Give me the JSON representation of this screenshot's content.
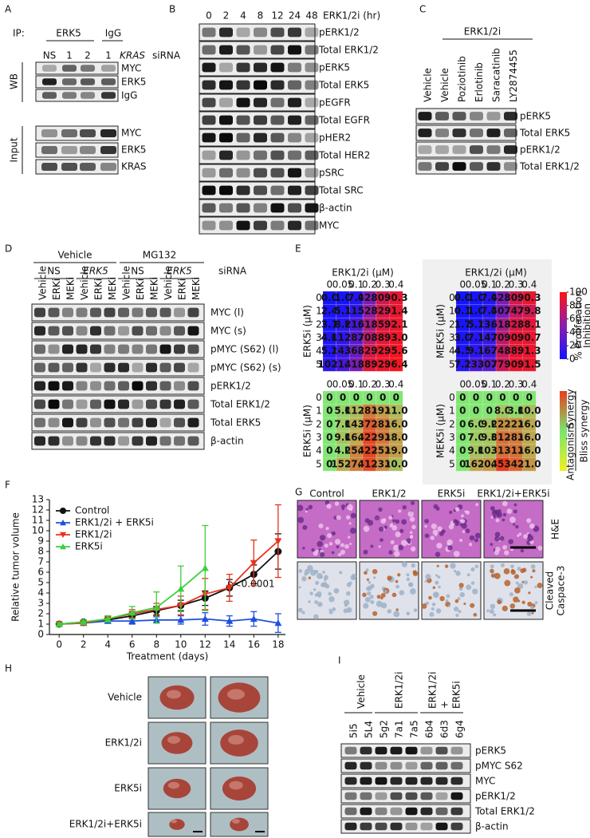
{
  "panel_labels": [
    "A",
    "B",
    "C",
    "D",
    "E",
    "F",
    "G",
    "H",
    "I"
  ],
  "A": {
    "ip_label": "IP:",
    "ip_groups": [
      "ERK5",
      "IgG"
    ],
    "lanes": [
      "NS",
      "1",
      "2",
      "1"
    ],
    "lane_gene": "KRAS",
    "lane_suffix": "siRNA",
    "sections": [
      "WB",
      "Input"
    ],
    "wb_rows": [
      "MYC",
      "ERK5",
      "IgG"
    ],
    "input_rows": [
      "MYC",
      "ERK5",
      "KRAS"
    ]
  },
  "B": {
    "lanes": [
      "0",
      "2",
      "4",
      "8",
      "12",
      "24",
      "48"
    ],
    "lanes_label": "ERK1/2i (hr)",
    "rows": [
      "pERK1/2",
      "Total ERK1/2",
      "pERK5",
      "Total ERK5",
      "pEGFR",
      "Total EGFR",
      "pHER2",
      "Total HER2",
      "pSRC",
      "Total SRC",
      "β-actin",
      "MYC"
    ]
  },
  "C": {
    "group": "ERK1/2i",
    "lanes": [
      "Vehicle",
      "Vehicle",
      "Poziotinib",
      "Erlotinib",
      "Saracatinib",
      "LY2874455"
    ],
    "rows": [
      "pERK5",
      "Total ERK5",
      "pERK1/2",
      "Total ERK1/2"
    ]
  },
  "D": {
    "treatments": [
      "Vehicle",
      "MG132"
    ],
    "sirna": [
      "NS",
      "ERK5",
      "NS",
      "ERK5"
    ],
    "sirna_label": "siRNA",
    "lanes": [
      "Vehicle",
      "ERKi",
      "MEKi",
      "Vehicle",
      "ERKi",
      "MEKi",
      "Vehicle",
      "ERKi",
      "MEKi",
      "Vehicle",
      "ERKi",
      "MEKi"
    ],
    "rows": [
      "MYC (l)",
      "MYC (s)",
      "pMYC (S62) (l)",
      "pMYC (S62) (s)",
      "pERK1/2",
      "Total ERK1/2",
      "Total ERK5",
      "β-actin"
    ]
  },
  "E": {
    "inhibition": [
      {
        "title": "ERK1/2i (μM)",
        "ylabel": "ERK5i (μM)",
        "cols": [
          "0",
          "0.05",
          "0.1",
          "0.2",
          "0.3",
          "0.4"
        ],
        "rows": [
          "0",
          "1",
          "2",
          "3",
          "4",
          "5"
        ],
        "cells": [
          [
            "0.0",
            "1.0",
            "7.0",
            "42.8",
            "80.0",
            "90.3"
          ],
          [
            "2.4",
            "5.1",
            "11.2",
            "52.6",
            "82.4",
            "91.4"
          ],
          [
            "3.1",
            "8.6",
            "21.0",
            "61.5",
            "85.5",
            "92.1"
          ],
          [
            "4.0",
            "11.2",
            "28.0",
            "70.2",
            "88.7",
            "93.0"
          ],
          [
            "5.2",
            "14.7",
            "36.2",
            "82.5",
            "92.2",
            "95.6"
          ],
          [
            "10.0",
            "21.4",
            "41.9",
            "88.4",
            "92.2",
            "96.4"
          ]
        ]
      },
      {
        "title": "ERK1/2i (μM)",
        "ylabel": "MEK5i (μM)",
        "cols": [
          "0",
          "0.05",
          "0.1",
          "0.2",
          "0.3",
          "0.4"
        ],
        "rows": [
          "0",
          "1",
          "2",
          "3",
          "4",
          "5"
        ],
        "cells": [
          [
            "0.0",
            "1.0",
            "7.0",
            "42.8",
            "80.0",
            "90.3"
          ],
          [
            "0.1",
            "1.0",
            "7.5",
            "40.6",
            "74.4",
            "79.8"
          ],
          [
            "1.7",
            "5.7",
            "13.5",
            "61.4",
            "82.7",
            "88.1"
          ],
          [
            "3.0",
            "7.1",
            "14.8",
            "70.6",
            "90.0",
            "90.7"
          ],
          [
            "4.5",
            "9.1",
            "16.9",
            "74.6",
            "88.6",
            "91.3"
          ],
          [
            "7.7",
            "23.0",
            "30.0",
            "77.7",
            "90.9",
            "91.5"
          ]
        ]
      }
    ],
    "bliss": [
      {
        "ylabel": "ERK5i (μM)",
        "cols": [
          "0",
          "0.05",
          "0.1",
          "0.2",
          "0.3",
          "0.4"
        ],
        "rows": [
          "0",
          "1",
          "2",
          "3",
          "4",
          "5"
        ],
        "cells": [
          [
            "0",
            "0",
            "0",
            "0",
            "0",
            "0"
          ],
          [
            "0",
            "5.0",
            "11.0",
            "28.0",
            "19.0",
            "11.0"
          ],
          [
            "0",
            "7.0",
            "14.0",
            "37.0",
            "28.0",
            "16.0"
          ],
          [
            "0",
            "9.0",
            "16.0",
            "42.0",
            "29.0",
            "18.0"
          ],
          [
            "0",
            "4.0",
            "25.0",
            "42.0",
            "25.0",
            "19.0"
          ],
          [
            "0",
            "15.0",
            "27.0",
            "41.0",
            "23.0",
            "10.0"
          ]
        ]
      },
      {
        "ylabel": "MEK5i (μM)",
        "cols": [
          "0",
          "0.05",
          "0.1",
          "0.2",
          "0.3",
          "0.4"
        ],
        "rows": [
          "0",
          "1",
          "2",
          "3",
          "4",
          "5"
        ],
        "cells": [
          [
            "0",
            "0",
            "0",
            "0",
            "0",
            "0"
          ],
          [
            "0",
            "0",
            "0",
            "8.0",
            "3.0",
            "10.0"
          ],
          [
            "0",
            "6.0",
            "9.0",
            "22.0",
            "22.0",
            "16.0"
          ],
          [
            "0",
            "7.0",
            "9.0",
            "31.0",
            "28.0",
            "16.0"
          ],
          [
            "0",
            "9.0",
            "10.0",
            "31.0",
            "31.0",
            "16.0"
          ],
          [
            "0",
            "16.0",
            "20.0",
            "45.0",
            "34.0",
            "21.0"
          ]
        ]
      }
    ],
    "inhibition_scale": {
      "lim": [
        0,
        100
      ],
      "ticks": [
        0,
        20,
        40,
        60,
        80,
        100
      ],
      "label": [
        "% Proliferation",
        "Inhibition"
      ]
    },
    "bliss_scale": {
      "marks": [
        "Synergy",
        "Antagonism"
      ],
      "label": "Bliss synergy"
    }
  },
  "chart_data": {
    "type": "line",
    "xlabel": "Treatment (days)",
    "ylabel": "Relative tumor volume",
    "annotation": "p<0.0001",
    "x": [
      0,
      2,
      4,
      6,
      8,
      10,
      12,
      14,
      16,
      18
    ],
    "xlim": [
      -0.8,
      18.6
    ],
    "xticks": [
      0,
      2,
      4,
      6,
      8,
      10,
      12,
      14,
      16,
      18
    ],
    "ylim": [
      0,
      13
    ],
    "yticks": [
      0,
      1,
      2,
      3,
      4,
      5,
      6,
      7,
      8,
      9,
      10,
      11,
      12,
      13
    ],
    "legend": "upper left",
    "series": [
      {
        "name": "Control",
        "color": "#111111",
        "marker": "circle",
        "values": [
          1,
          1.2,
          1.4,
          1.8,
          2.3,
          2.8,
          3.5,
          4.5,
          5.8,
          8.0
        ],
        "errors": [
          0.1,
          0.2,
          0.2,
          0.3,
          0.4,
          0.5,
          0.7,
          0.8,
          0.9,
          1.7
        ]
      },
      {
        "name": "ERK1/2i + ERK5i",
        "color": "#1f4fe0",
        "marker": "triangle-up",
        "values": [
          1,
          1.1,
          1.3,
          1.3,
          1.4,
          1.4,
          1.5,
          1.3,
          1.5,
          1.1
        ],
        "errors": [
          0.1,
          0.1,
          0.2,
          0.3,
          0.3,
          0.4,
          0.6,
          0.5,
          0.7,
          0.9
        ]
      },
      {
        "name": "ERK1/2i",
        "color": "#e8321e",
        "marker": "triangle-down",
        "values": [
          1,
          1.1,
          1.5,
          2.0,
          2.4,
          2.8,
          3.9,
          4.5,
          6.9,
          9.0
        ],
        "errors": [
          0.1,
          0.2,
          0.3,
          0.4,
          0.6,
          0.9,
          1.5,
          1.3,
          2.2,
          3.5
        ]
      },
      {
        "name": "ERK5i",
        "color": "#3ccf3c",
        "marker": "triangle-up",
        "values": [
          1,
          1.2,
          1.5,
          2.1,
          2.6,
          4.4,
          6.4,
          null,
          null,
          null
        ],
        "errors": [
          0.1,
          0.2,
          0.3,
          0.6,
          1.5,
          2.2,
          4.1,
          null,
          null,
          null
        ]
      }
    ]
  },
  "G": {
    "columns": [
      "Control",
      "ERK1/2",
      "ERK5i",
      "ERK1/2i+ERK5i"
    ],
    "row_labels": [
      [
        "H&E"
      ],
      [
        "Cleaved",
        "Caspace-3"
      ]
    ]
  },
  "H": {
    "rows": [
      "Vehicle",
      "ERK1/2i",
      "ERK5i",
      "ERK1/2i+ERK5i"
    ]
  },
  "I": {
    "groups": [
      [
        "Vehicle"
      ],
      [
        "ERK1/2i"
      ],
      [
        "ERK1/2i",
        "+",
        "ERK5i"
      ]
    ],
    "lanes": [
      "5i5",
      "5L4",
      "5g2",
      "7a1",
      "7a5",
      "6b4",
      "6d3",
      "6g4"
    ],
    "rows": [
      "pERK5",
      "pMYC S62",
      "MYC",
      "pERK1/2",
      "Total ERK1/2",
      "β-actin"
    ]
  }
}
